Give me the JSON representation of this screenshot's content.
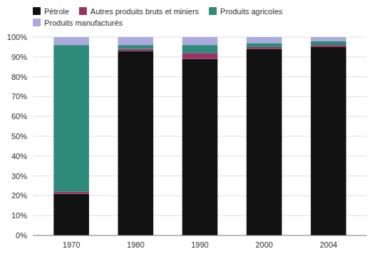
{
  "chart_data": {
    "type": "bar",
    "stacked": true,
    "categories": [
      "1970",
      "1980",
      "1990",
      "2000",
      "2004"
    ],
    "series": [
      {
        "name": "Pétrole",
        "color": "#111111",
        "values": [
          21,
          93,
          89,
          94,
          95
        ]
      },
      {
        "name": "Autres produits bruts et miniers",
        "color": "#993366",
        "values": [
          1,
          1,
          3,
          1,
          1
        ]
      },
      {
        "name": "Produits agricoles",
        "color": "#2e8b7a",
        "values": [
          74,
          2,
          4,
          2,
          2
        ]
      },
      {
        "name": "Produits manufacturés",
        "color": "#aaaadd",
        "values": [
          4,
          4,
          4,
          3,
          2
        ]
      }
    ],
    "ylim": [
      0,
      100
    ],
    "yticks": [
      {
        "value": 0,
        "label": "0%"
      },
      {
        "value": 10,
        "label": "10%"
      },
      {
        "value": 20,
        "label": "20%"
      },
      {
        "value": 30,
        "label": "30%"
      },
      {
        "value": 40,
        "label": "40%"
      },
      {
        "value": 50,
        "label": "50%"
      },
      {
        "value": 60,
        "label": "60%"
      },
      {
        "value": 70,
        "label": "70%"
      },
      {
        "value": 80,
        "label": "80%"
      },
      {
        "value": 90,
        "label": "90%"
      },
      {
        "value": 100,
        "label": "100%"
      }
    ],
    "grid": true,
    "legend": "top-left"
  }
}
